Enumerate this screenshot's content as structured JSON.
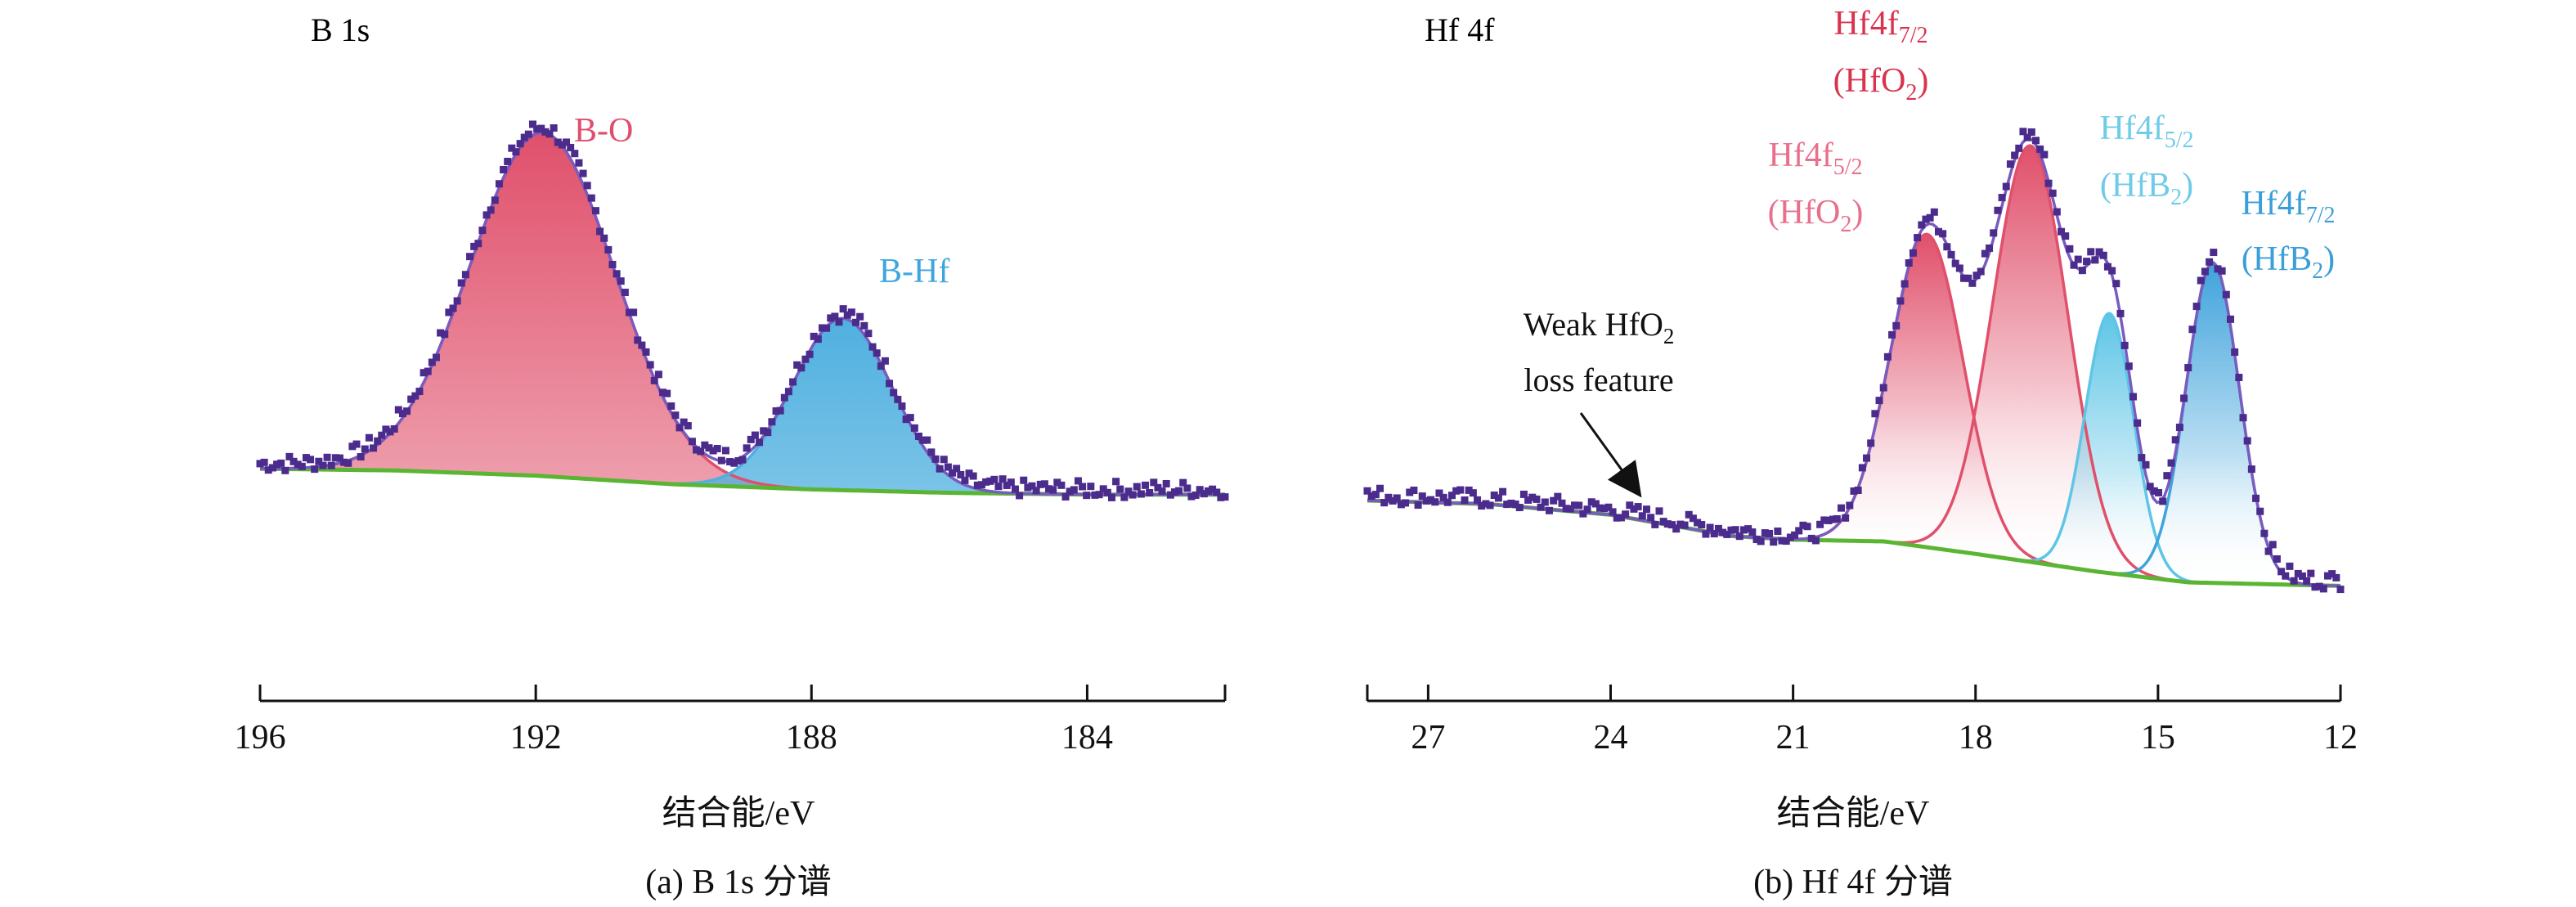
{
  "chart_data": [
    {
      "panel": "a",
      "type": "line",
      "corner_label": "B 1s",
      "xlabel": "结合能/eV",
      "caption": "(a) B 1s 分谱",
      "xlim": [
        196,
        182
      ],
      "xticks": [
        196,
        192,
        188,
        184
      ],
      "reversed_x": true,
      "background": [
        [
          195.9,
          0.04
        ],
        [
          194,
          0.035
        ],
        [
          192,
          0.02
        ],
        [
          190,
          -0.005
        ],
        [
          188,
          -0.02
        ],
        [
          186,
          -0.03
        ],
        [
          184,
          -0.035
        ],
        [
          182,
          -0.035
        ]
      ],
      "components": [
        {
          "name": "B-O",
          "center": 191.9,
          "height": 1.0,
          "sigma": 1.05,
          "color": "#e0506b",
          "label_color": "#e14d6c"
        },
        {
          "name": "B-Hf",
          "center": 187.55,
          "height": 0.5,
          "sigma": 0.72,
          "color": "#4fb0e0",
          "label_color": "#3ea6de"
        }
      ],
      "raw_color": "#4b2c8c",
      "background_color": "#5ab532",
      "envelope_color": "#7a5bbf"
    },
    {
      "panel": "b",
      "type": "line",
      "corner_label": "Hf 4f",
      "xlabel": "结合能/eV",
      "caption": "(b) Hf 4f 分谱",
      "xlim": [
        28,
        12
      ],
      "xticks": [
        27,
        24,
        21,
        18,
        15,
        12
      ],
      "reversed_x": true,
      "background": [
        [
          28,
          0.0
        ],
        [
          26,
          -0.01
        ],
        [
          24,
          -0.04
        ],
        [
          22,
          -0.1
        ],
        [
          21,
          -0.11
        ],
        [
          19.5,
          -0.115
        ],
        [
          18,
          -0.15
        ],
        [
          16,
          -0.2
        ],
        [
          14.5,
          -0.23
        ],
        [
          12,
          -0.24
        ]
      ],
      "components": [
        {
          "name": "Hf4f5/2 (HfO2)",
          "center": 18.8,
          "height": 0.88,
          "sigma": 0.6,
          "color": "#e0506b"
        },
        {
          "name": "Hf4f7/2 (HfO2)",
          "center": 17.1,
          "height": 1.17,
          "sigma": 0.62,
          "color": "#e0506b"
        },
        {
          "name": "Hf4f5/2 (HfB2)",
          "center": 15.8,
          "height": 0.73,
          "sigma": 0.4,
          "color": "#5ec5e6"
        },
        {
          "name": "Hf4f7/2 (HfB2)",
          "center": 14.1,
          "height": 0.9,
          "sigma": 0.44,
          "color": "#3fa3dc"
        }
      ],
      "labels": {
        "l1": {
          "line1_main": "Hf4f",
          "line1_sub": "5/2",
          "line2_pre": "(HfO",
          "line2_sub": "2",
          "line2_post": ")",
          "color": "#e8708c"
        },
        "l2": {
          "line1_main": "Hf4f",
          "line1_sub": "7/2",
          "line2_pre": "(HfO",
          "line2_sub": "2",
          "line2_post": ")",
          "color": "#d9344f"
        },
        "l3": {
          "line1_main": "Hf4f",
          "line1_sub": "5/2",
          "line2_pre": "(HfB",
          "line2_sub": "2",
          "line2_post": ")",
          "color": "#70cbe8"
        },
        "l4": {
          "line1_main": "Hf4f",
          "line1_sub": "7/2",
          "line2_pre": "(HfB",
          "line2_sub": "2",
          "line2_post": ")",
          "color": "#3a9ed8"
        }
      },
      "annotation": {
        "line1_pre": "Weak HfO",
        "line1_sub": "2",
        "line2": "loss feature",
        "arrow_to": [
          23.2,
          0.005
        ]
      },
      "raw_color": "#4b2c8c",
      "background_color": "#5ab532",
      "envelope_color": "#7a5bbf"
    }
  ]
}
